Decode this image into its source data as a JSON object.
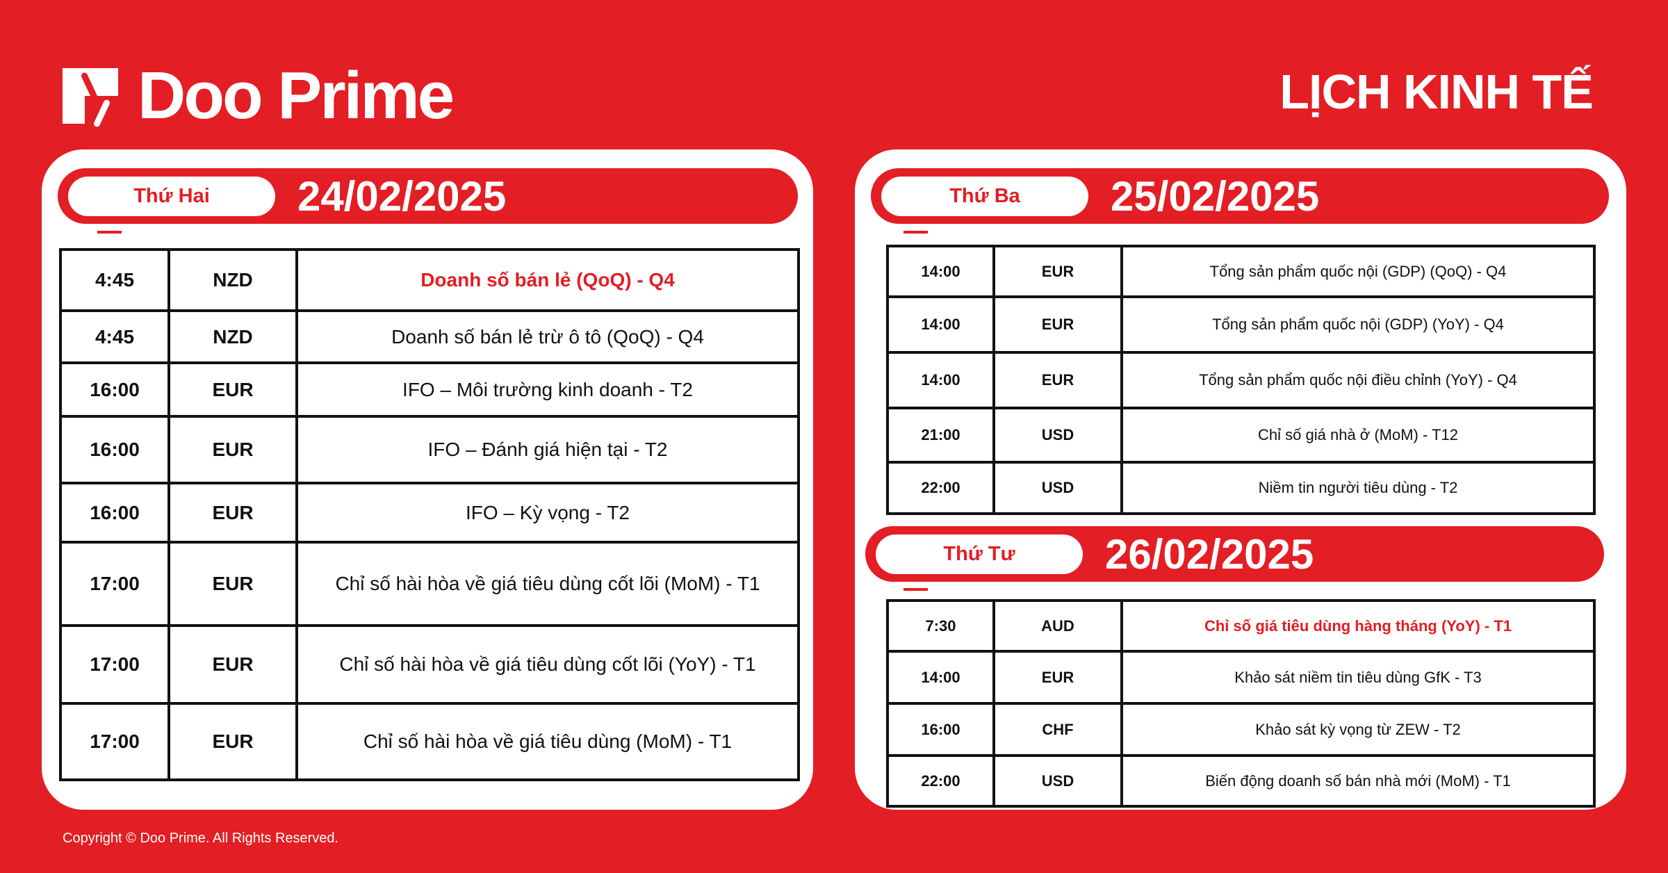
{
  "brand": {
    "name": "Doo Prime",
    "accent": "#e31e24"
  },
  "title": "LỊCH KINH TẾ",
  "days": [
    {
      "day": "Thứ Hai",
      "date": "24/02/2025",
      "rows": [
        {
          "time": "4:45",
          "currency": "NZD",
          "event": "Doanh số bán lẻ (QoQ) - Q4",
          "highlight": true
        },
        {
          "time": "4:45",
          "currency": "NZD",
          "event": "Doanh số bán lẻ trừ ô tô (QoQ) - Q4"
        },
        {
          "time": "16:00",
          "currency": "EUR",
          "event": "IFO – Môi trường kinh doanh - T2"
        },
        {
          "time": "16:00",
          "currency": "EUR",
          "event": "IFO – Đánh giá hiện tại - T2"
        },
        {
          "time": "16:00",
          "currency": "EUR",
          "event": "IFO – Kỳ vọng - T2"
        },
        {
          "time": "17:00",
          "currency": "EUR",
          "event": "Chỉ số hài hòa về giá tiêu dùng cốt lõi (MoM) - T1"
        },
        {
          "time": "17:00",
          "currency": "EUR",
          "event": "Chỉ số hài hòa về giá tiêu dùng cốt lõi (YoY) - T1"
        },
        {
          "time": "17:00",
          "currency": "EUR",
          "event": "Chỉ số hài hòa về giá tiêu dùng (MoM) - T1"
        }
      ]
    },
    {
      "day": "Thứ Ba",
      "date": "25/02/2025",
      "rows": [
        {
          "time": "14:00",
          "currency": "EUR",
          "event": "Tổng sản phẩm quốc nội (GDP) (QoQ) - Q4"
        },
        {
          "time": "14:00",
          "currency": "EUR",
          "event": "Tổng sản phẩm quốc nội (GDP) (YoY) - Q4"
        },
        {
          "time": "14:00",
          "currency": "EUR",
          "event": "Tổng sản phẩm quốc nội điều chỉnh (YoY) - Q4"
        },
        {
          "time": "21:00",
          "currency": "USD",
          "event": "Chỉ số giá nhà ở (MoM) - T12"
        },
        {
          "time": "22:00",
          "currency": "USD",
          "event": "Niềm tin người tiêu dùng - T2"
        }
      ]
    },
    {
      "day": "Thứ Tư",
      "date": "26/02/2025",
      "rows": [
        {
          "time": "7:30",
          "currency": "AUD",
          "event": "Chỉ số giá tiêu dùng hàng tháng (YoY) - T1",
          "highlight": true
        },
        {
          "time": "14:00",
          "currency": "EUR",
          "event": "Khảo sát niềm tin tiêu dùng GfK - T3"
        },
        {
          "time": "16:00",
          "currency": "CHF",
          "event": "Khảo sát kỳ vọng từ ZEW - T2"
        },
        {
          "time": "22:00",
          "currency": "USD",
          "event": "Biến động doanh số bán nhà mới (MoM) - T1"
        }
      ]
    }
  ],
  "copyright": "Copyright © Doo Prime. All Rights Reserved."
}
